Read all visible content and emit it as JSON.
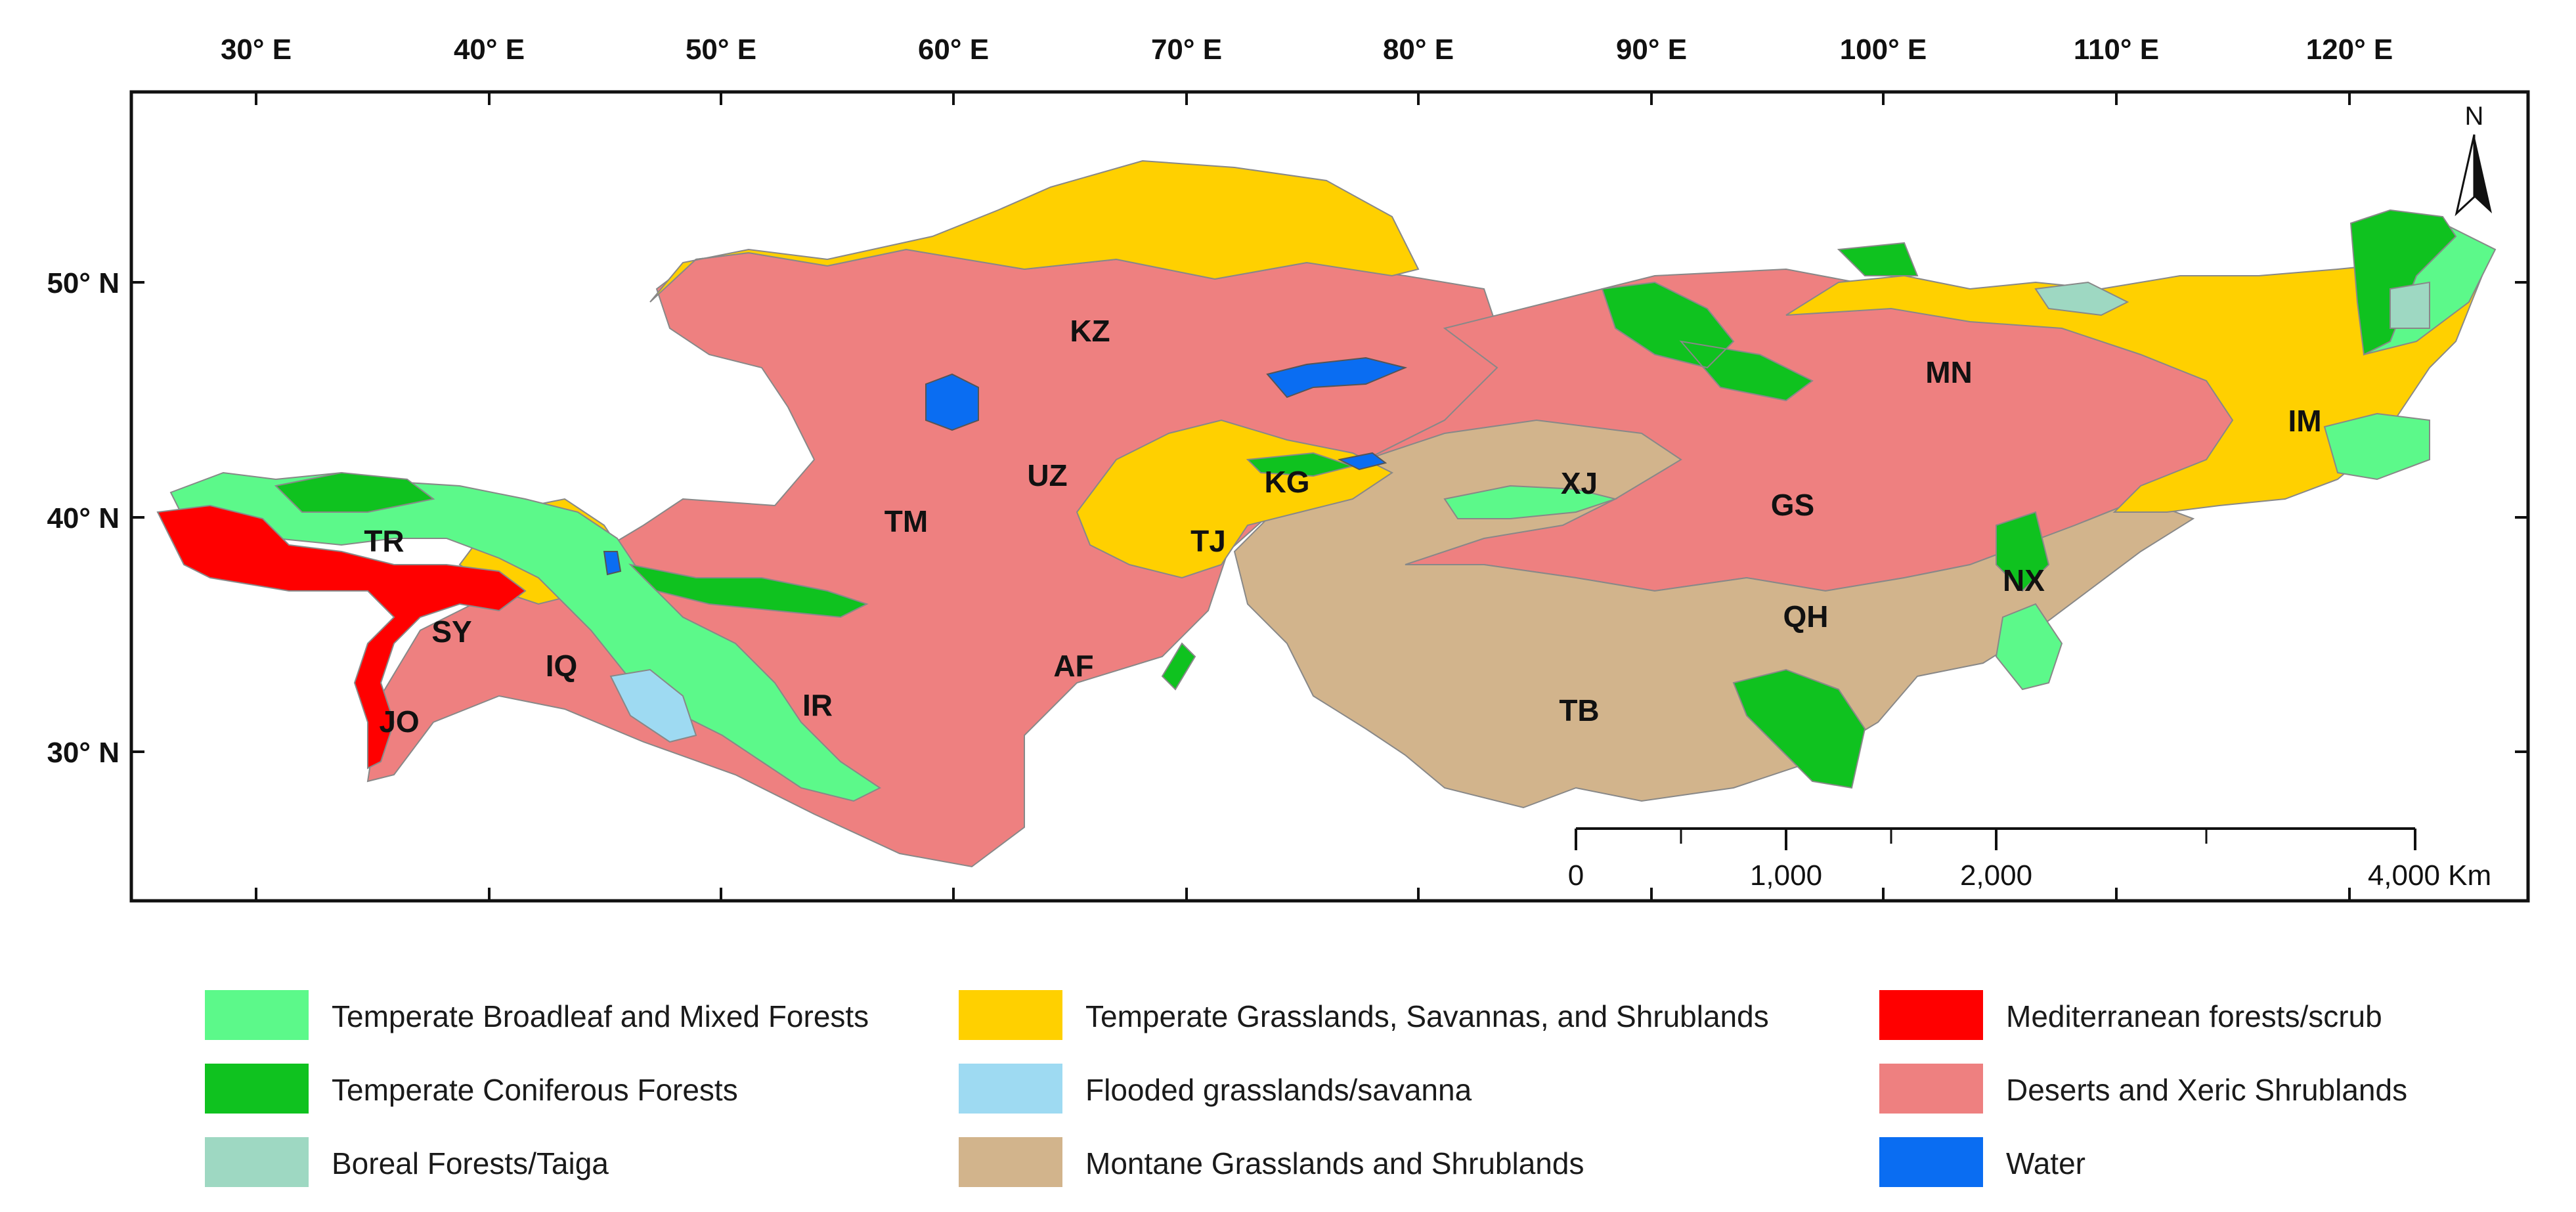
{
  "map": {
    "longitude_labels": [
      "30° E",
      "40° E",
      "50° E",
      "60° E",
      "70° E",
      "80° E",
      "90° E",
      "100° E",
      "110° E",
      "120° E"
    ],
    "latitude_labels": [
      "50° N",
      "40° N",
      "30° N"
    ],
    "north_arrow_label": "N",
    "scale_bar_labels": [
      "0",
      "1,000",
      "2,000",
      "4,000 Km"
    ],
    "regions": [
      {
        "code": "KZ"
      },
      {
        "code": "UZ"
      },
      {
        "code": "TM"
      },
      {
        "code": "KG"
      },
      {
        "code": "TJ"
      },
      {
        "code": "TR"
      },
      {
        "code": "SY"
      },
      {
        "code": "IQ"
      },
      {
        "code": "JO"
      },
      {
        "code": "IR"
      },
      {
        "code": "AF"
      },
      {
        "code": "XJ"
      },
      {
        "code": "MN"
      },
      {
        "code": "IM"
      },
      {
        "code": "GS"
      },
      {
        "code": "NX"
      },
      {
        "code": "QH"
      },
      {
        "code": "TB"
      }
    ]
  },
  "legend": [
    {
      "label": "Temperate Broadleaf and Mixed Forests",
      "color": "#5CF98A"
    },
    {
      "label": "Temperate Coniferous Forests",
      "color": "#0FC21F"
    },
    {
      "label": "Boreal Forests/Taiga",
      "color": "#9ED8C2"
    },
    {
      "label": "Temperate Grasslands, Savannas, and Shrublands",
      "color": "#FFD000"
    },
    {
      "label": "Flooded grasslands/savanna",
      "color": "#9EDAF2"
    },
    {
      "label": "Montane Grasslands and Shrublands",
      "color": "#D2B48C"
    },
    {
      "label": "Mediterranean forests/scrub",
      "color": "#FF0000"
    },
    {
      "label": "Deserts and Xeric Shrublands",
      "color": "#EE8080"
    },
    {
      "label": "Water",
      "color": "#0A6DF2"
    }
  ]
}
